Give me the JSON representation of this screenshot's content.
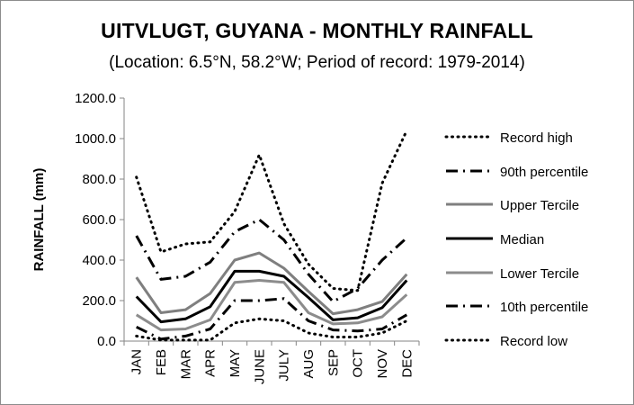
{
  "chart_data": {
    "type": "line",
    "title": "UITVLUGT, GUYANA - MONTHLY RAINFALL",
    "subtitle": "(Location: 6.5°N, 58.2°W; Period of record: 1979-2014)",
    "xlabel": "",
    "ylabel": "RAINFALL (mm)",
    "ylim": [
      0,
      1200
    ],
    "yticks": [
      "0.0",
      "200.0",
      "400.0",
      "600.0",
      "800.0",
      "1000.0",
      "1200.0"
    ],
    "categories": [
      "JAN",
      "FEB",
      "MAR",
      "APR",
      "MAY",
      "JUNE",
      "JULY",
      "AUG",
      "SEP",
      "OCT",
      "NOV",
      "DEC"
    ],
    "grid": false,
    "legend_position": "right",
    "series": [
      {
        "name": "Record high",
        "style": "dotted",
        "color": "#000000",
        "width": 3,
        "values": [
          810,
          440,
          480,
          490,
          640,
          920,
          580,
          380,
          260,
          250,
          780,
          1040
        ]
      },
      {
        "name": "90th percentile",
        "style": "dashdot",
        "color": "#000000",
        "width": 3,
        "values": [
          520,
          305,
          320,
          390,
          540,
          600,
          500,
          330,
          195,
          260,
          400,
          510
        ]
      },
      {
        "name": "Upper Tercile",
        "style": "solid",
        "color": "#7f7f7f",
        "width": 3,
        "values": [
          315,
          140,
          155,
          235,
          400,
          435,
          360,
          245,
          135,
          155,
          195,
          330
        ]
      },
      {
        "name": "Median",
        "style": "solid",
        "color": "#000000",
        "width": 3,
        "values": [
          220,
          95,
          110,
          170,
          345,
          345,
          320,
          215,
          105,
          115,
          165,
          300
        ]
      },
      {
        "name": "Lower Tercile",
        "style": "solid",
        "color": "#8c8c8c",
        "width": 3,
        "values": [
          130,
          55,
          60,
          105,
          290,
          300,
          290,
          140,
          85,
          90,
          120,
          230
        ]
      },
      {
        "name": "10th percentile",
        "style": "dashdot",
        "color": "#000000",
        "width": 3,
        "values": [
          70,
          10,
          25,
          60,
          200,
          200,
          210,
          100,
          55,
          50,
          60,
          130
        ]
      },
      {
        "name": "Record low",
        "style": "dotted",
        "color": "#000000",
        "width": 3,
        "values": [
          25,
          5,
          5,
          5,
          90,
          110,
          100,
          40,
          20,
          20,
          40,
          100
        ]
      }
    ]
  }
}
